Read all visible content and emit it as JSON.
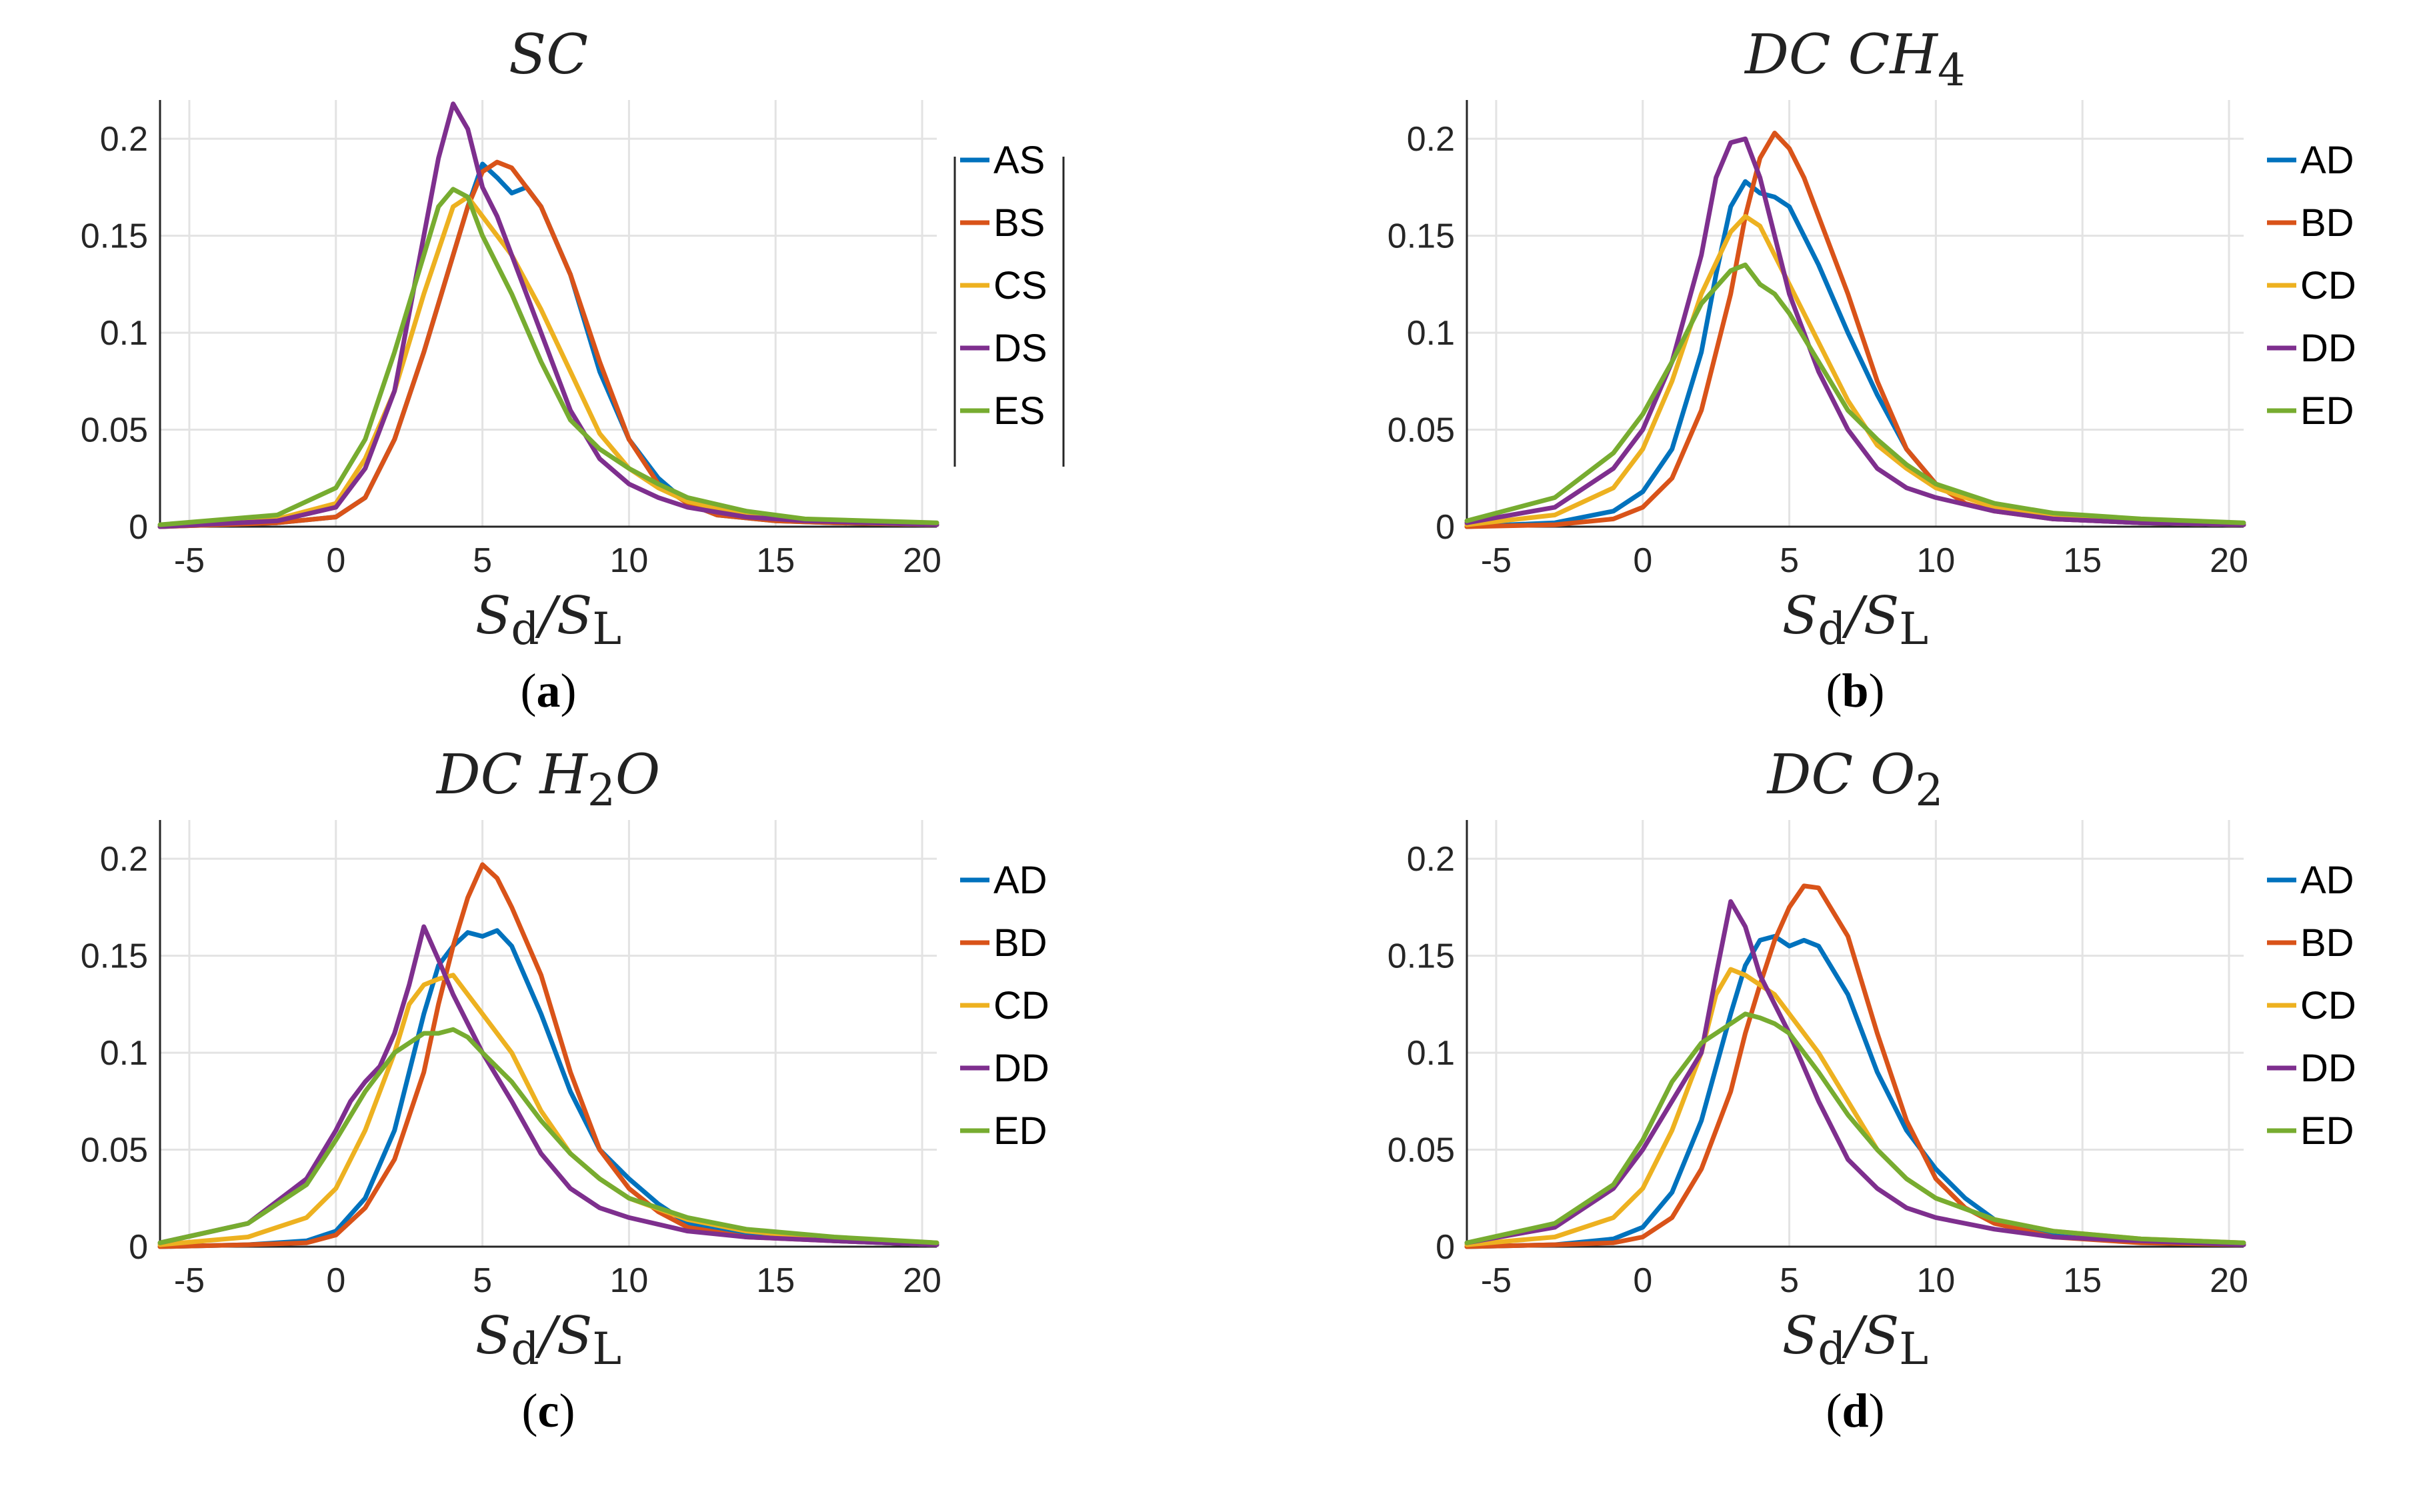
{
  "colors": {
    "A": "#0072BD",
    "B": "#D95319",
    "C": "#EDB120",
    "D": "#7E2F8E",
    "E": "#77AC30"
  },
  "chart_data": [
    {
      "type": "line",
      "title": "SC",
      "xlabel": "S_d/S_L",
      "caption": "a",
      "xlim": [
        -6,
        20.5
      ],
      "ylim": [
        0,
        0.22
      ],
      "xticks": [
        "-5",
        "0",
        "5",
        "10",
        "15",
        "20"
      ],
      "yticks": [
        "0",
        "0.05",
        "0.1",
        "0.15",
        "0.2"
      ],
      "series": [
        {
          "name": "AS",
          "color_key": "A",
          "x": [
            -6,
            -2,
            0,
            1,
            2,
            3,
            4,
            4.5,
            5,
            5.5,
            6,
            6.5,
            7,
            8,
            9,
            10,
            11,
            12,
            13,
            15,
            17,
            20.5
          ],
          "y": [
            0,
            0.002,
            0.005,
            0.015,
            0.045,
            0.09,
            0.14,
            0.165,
            0.187,
            0.18,
            0.172,
            0.175,
            0.165,
            0.13,
            0.08,
            0.045,
            0.025,
            0.012,
            0.006,
            0.003,
            0.002,
            0.001
          ]
        },
        {
          "name": "BS",
          "color_key": "B",
          "x": [
            -6,
            -2,
            0,
            1,
            2,
            3,
            4,
            4.5,
            5,
            5.5,
            6,
            6.5,
            7,
            8,
            9,
            10,
            11,
            12,
            13,
            15,
            17,
            20.5
          ],
          "y": [
            0,
            0.002,
            0.005,
            0.015,
            0.045,
            0.09,
            0.14,
            0.165,
            0.183,
            0.188,
            0.185,
            0.175,
            0.165,
            0.13,
            0.085,
            0.045,
            0.022,
            0.012,
            0.006,
            0.003,
            0.002,
            0.001
          ]
        },
        {
          "name": "CS",
          "color_key": "C",
          "x": [
            -6,
            -2,
            0,
            1,
            2,
            3,
            4,
            4.5,
            5,
            5.5,
            6,
            7,
            8,
            9,
            10,
            11,
            12,
            14,
            16,
            20.5
          ],
          "y": [
            0,
            0.004,
            0.012,
            0.035,
            0.07,
            0.12,
            0.165,
            0.17,
            0.16,
            0.15,
            0.14,
            0.112,
            0.08,
            0.048,
            0.03,
            0.02,
            0.013,
            0.006,
            0.003,
            0.001
          ]
        },
        {
          "name": "DS",
          "color_key": "D",
          "x": [
            -6,
            -2,
            0,
            1,
            2,
            3,
            3.5,
            4,
            4.5,
            5,
            5.5,
            6,
            7,
            8,
            9,
            10,
            11,
            12,
            14,
            16,
            20.5
          ],
          "y": [
            0,
            0.003,
            0.01,
            0.03,
            0.07,
            0.15,
            0.19,
            0.218,
            0.205,
            0.175,
            0.16,
            0.14,
            0.1,
            0.06,
            0.035,
            0.022,
            0.015,
            0.01,
            0.005,
            0.003,
            0.001
          ]
        },
        {
          "name": "ES",
          "color_key": "E",
          "x": [
            -6,
            -2,
            0,
            1,
            2,
            3,
            3.5,
            4,
            4.5,
            5,
            5.5,
            6,
            7,
            8,
            9,
            10,
            11,
            12,
            14,
            16,
            20.5
          ],
          "y": [
            0.001,
            0.006,
            0.02,
            0.045,
            0.09,
            0.14,
            0.165,
            0.174,
            0.17,
            0.15,
            0.135,
            0.12,
            0.085,
            0.055,
            0.04,
            0.03,
            0.022,
            0.015,
            0.008,
            0.004,
            0.002
          ]
        }
      ]
    },
    {
      "type": "line",
      "title": "DC CH4",
      "xlabel": "S_d/S_L",
      "caption": "b",
      "xlim": [
        -6,
        20.5
      ],
      "ylim": [
        0,
        0.22
      ],
      "xticks": [
        "-5",
        "0",
        "5",
        "10",
        "15",
        "20"
      ],
      "yticks": [
        "0",
        "0.05",
        "0.1",
        "0.15",
        "0.2"
      ],
      "series": [
        {
          "name": "AD",
          "color_key": "A",
          "x": [
            -6,
            -3,
            -1,
            0,
            1,
            2,
            2.5,
            3,
            3.5,
            4,
            4.5,
            5,
            6,
            7,
            8,
            9,
            10,
            12,
            14,
            17,
            20.5
          ],
          "y": [
            0,
            0.002,
            0.008,
            0.018,
            0.04,
            0.09,
            0.13,
            0.165,
            0.178,
            0.172,
            0.17,
            0.165,
            0.135,
            0.1,
            0.068,
            0.04,
            0.022,
            0.01,
            0.004,
            0.002,
            0.001
          ]
        },
        {
          "name": "BD",
          "color_key": "B",
          "x": [
            -6,
            -3,
            -1,
            0,
            1,
            2,
            3,
            3.5,
            4,
            4.5,
            5,
            5.5,
            6,
            7,
            8,
            9,
            10,
            11,
            12,
            14,
            17,
            20.5
          ],
          "y": [
            0,
            0.001,
            0.004,
            0.01,
            0.025,
            0.06,
            0.12,
            0.16,
            0.19,
            0.203,
            0.195,
            0.18,
            0.16,
            0.12,
            0.075,
            0.04,
            0.022,
            0.012,
            0.008,
            0.004,
            0.002,
            0.001
          ]
        },
        {
          "name": "CD",
          "color_key": "C",
          "x": [
            -6,
            -3,
            -1,
            0,
            1,
            2,
            3,
            3.5,
            4,
            4.5,
            5,
            6,
            7,
            8,
            9,
            10,
            12,
            14,
            17,
            20.5
          ],
          "y": [
            0.001,
            0.006,
            0.02,
            0.04,
            0.075,
            0.12,
            0.152,
            0.16,
            0.155,
            0.14,
            0.125,
            0.095,
            0.065,
            0.042,
            0.03,
            0.02,
            0.01,
            0.005,
            0.002,
            0.001
          ]
        },
        {
          "name": "DD",
          "color_key": "D",
          "x": [
            -6,
            -3,
            -1,
            0,
            1,
            2,
            2.5,
            3,
            3.5,
            4,
            4.5,
            5,
            6,
            7,
            8,
            9,
            10,
            12,
            14,
            17,
            20.5
          ],
          "y": [
            0.002,
            0.01,
            0.03,
            0.05,
            0.085,
            0.14,
            0.18,
            0.198,
            0.2,
            0.18,
            0.15,
            0.12,
            0.08,
            0.05,
            0.03,
            0.02,
            0.015,
            0.008,
            0.004,
            0.002,
            0.001
          ]
        },
        {
          "name": "ED",
          "color_key": "E",
          "x": [
            -6,
            -3,
            -1,
            0,
            1,
            2,
            3,
            3.5,
            4,
            4.5,
            5,
            6,
            7,
            8,
            9,
            10,
            12,
            14,
            17,
            20.5
          ],
          "y": [
            0.003,
            0.015,
            0.038,
            0.058,
            0.085,
            0.115,
            0.132,
            0.135,
            0.125,
            0.12,
            0.11,
            0.085,
            0.06,
            0.045,
            0.032,
            0.022,
            0.012,
            0.007,
            0.004,
            0.002
          ]
        }
      ]
    },
    {
      "type": "line",
      "title": "DC H2O",
      "xlabel": "S_d/S_L",
      "caption": "c",
      "xlim": [
        -6,
        20.5
      ],
      "ylim": [
        0,
        0.22
      ],
      "xticks": [
        "-5",
        "0",
        "5",
        "10",
        "15",
        "20"
      ],
      "yticks": [
        "0",
        "0.05",
        "0.1",
        "0.15",
        "0.2"
      ],
      "series": [
        {
          "name": "AD",
          "color_key": "A",
          "x": [
            -6,
            -3,
            -1,
            0,
            1,
            2,
            3,
            3.5,
            4,
            4.5,
            5,
            5.5,
            6,
            7,
            8,
            9,
            10,
            11,
            12,
            14,
            17,
            20.5
          ],
          "y": [
            0,
            0.001,
            0.003,
            0.008,
            0.025,
            0.06,
            0.12,
            0.145,
            0.155,
            0.162,
            0.16,
            0.163,
            0.155,
            0.12,
            0.08,
            0.05,
            0.035,
            0.022,
            0.012,
            0.006,
            0.003,
            0.001
          ]
        },
        {
          "name": "BD",
          "color_key": "B",
          "x": [
            -6,
            -3,
            -1,
            0,
            1,
            2,
            3,
            3.5,
            4,
            4.5,
            5,
            5.5,
            6,
            7,
            8,
            9,
            10,
            11,
            12,
            14,
            17,
            20.5
          ],
          "y": [
            0,
            0.001,
            0.002,
            0.006,
            0.02,
            0.045,
            0.09,
            0.125,
            0.155,
            0.18,
            0.197,
            0.19,
            0.175,
            0.14,
            0.09,
            0.05,
            0.03,
            0.018,
            0.01,
            0.005,
            0.003,
            0.001
          ]
        },
        {
          "name": "CD",
          "color_key": "C",
          "x": [
            -6,
            -3,
            -1,
            0,
            1,
            2,
            2.5,
            3,
            3.5,
            4,
            4.5,
            5,
            6,
            7,
            8,
            9,
            10,
            12,
            14,
            17,
            20.5
          ],
          "y": [
            0.001,
            0.005,
            0.015,
            0.03,
            0.06,
            0.1,
            0.125,
            0.135,
            0.138,
            0.14,
            0.13,
            0.12,
            0.1,
            0.07,
            0.048,
            0.035,
            0.025,
            0.014,
            0.008,
            0.004,
            0.002
          ]
        },
        {
          "name": "DD",
          "color_key": "D",
          "x": [
            -6,
            -3,
            -1,
            0,
            0.5,
            1,
            1.5,
            2,
            2.5,
            3,
            3.5,
            4,
            4.5,
            5,
            6,
            7,
            8,
            9,
            10,
            12,
            14,
            17,
            20.5
          ],
          "y": [
            0.002,
            0.012,
            0.035,
            0.06,
            0.075,
            0.085,
            0.093,
            0.11,
            0.135,
            0.165,
            0.148,
            0.13,
            0.115,
            0.1,
            0.075,
            0.048,
            0.03,
            0.02,
            0.015,
            0.008,
            0.005,
            0.003,
            0.001
          ]
        },
        {
          "name": "ED",
          "color_key": "E",
          "x": [
            -6,
            -3,
            -1,
            0,
            1,
            2,
            3,
            3.5,
            4,
            4.5,
            5,
            6,
            7,
            8,
            9,
            10,
            12,
            14,
            17,
            20.5
          ],
          "y": [
            0.002,
            0.012,
            0.032,
            0.055,
            0.08,
            0.1,
            0.11,
            0.11,
            0.112,
            0.108,
            0.1,
            0.085,
            0.065,
            0.048,
            0.035,
            0.025,
            0.015,
            0.009,
            0.005,
            0.002
          ]
        }
      ]
    },
    {
      "type": "line",
      "title": "DC O2",
      "xlabel": "S_d/S_L",
      "caption": "d",
      "xlim": [
        -6,
        20.5
      ],
      "ylim": [
        0,
        0.22
      ],
      "xticks": [
        "-5",
        "0",
        "5",
        "10",
        "15",
        "20"
      ],
      "yticks": [
        "0",
        "0.05",
        "0.1",
        "0.15",
        "0.2"
      ],
      "series": [
        {
          "name": "AD",
          "color_key": "A",
          "x": [
            -6,
            -3,
            -1,
            0,
            1,
            2,
            3,
            3.5,
            4,
            4.5,
            5,
            5.5,
            6,
            7,
            8,
            9,
            10,
            11,
            12,
            14,
            17,
            20.5
          ],
          "y": [
            0,
            0.001,
            0.004,
            0.01,
            0.028,
            0.065,
            0.12,
            0.145,
            0.158,
            0.16,
            0.155,
            0.158,
            0.155,
            0.13,
            0.09,
            0.06,
            0.04,
            0.025,
            0.014,
            0.006,
            0.003,
            0.001
          ]
        },
        {
          "name": "BD",
          "color_key": "B",
          "x": [
            -6,
            -3,
            -1,
            0,
            1,
            2,
            3,
            3.5,
            4,
            4.5,
            5,
            5.5,
            6,
            7,
            8,
            9,
            10,
            11,
            12,
            14,
            17,
            20.5
          ],
          "y": [
            0,
            0.001,
            0.002,
            0.005,
            0.015,
            0.04,
            0.08,
            0.11,
            0.135,
            0.158,
            0.175,
            0.186,
            0.185,
            0.16,
            0.11,
            0.065,
            0.035,
            0.02,
            0.012,
            0.005,
            0.002,
            0.001
          ]
        },
        {
          "name": "CD",
          "color_key": "C",
          "x": [
            -6,
            -3,
            -1,
            0,
            1,
            2,
            2.5,
            3,
            3.5,
            4,
            4.5,
            5,
            6,
            7,
            8,
            9,
            10,
            12,
            14,
            17,
            20.5
          ],
          "y": [
            0.001,
            0.005,
            0.015,
            0.03,
            0.06,
            0.1,
            0.13,
            0.143,
            0.14,
            0.135,
            0.13,
            0.12,
            0.1,
            0.075,
            0.05,
            0.035,
            0.025,
            0.014,
            0.008,
            0.004,
            0.002
          ]
        },
        {
          "name": "DD",
          "color_key": "D",
          "x": [
            -6,
            -3,
            -1,
            0,
            1,
            2,
            2.5,
            3,
            3.5,
            4,
            4.5,
            5,
            6,
            7,
            8,
            9,
            10,
            12,
            14,
            17,
            20.5
          ],
          "y": [
            0.002,
            0.01,
            0.03,
            0.05,
            0.075,
            0.1,
            0.14,
            0.178,
            0.165,
            0.14,
            0.125,
            0.11,
            0.075,
            0.045,
            0.03,
            0.02,
            0.015,
            0.009,
            0.005,
            0.003,
            0.001
          ]
        },
        {
          "name": "ED",
          "color_key": "E",
          "x": [
            -6,
            -3,
            -1,
            0,
            1,
            2,
            3,
            3.5,
            4,
            4.5,
            5,
            6,
            7,
            8,
            9,
            10,
            12,
            14,
            17,
            20.5
          ],
          "y": [
            0.002,
            0.012,
            0.032,
            0.055,
            0.085,
            0.105,
            0.115,
            0.12,
            0.118,
            0.115,
            0.11,
            0.09,
            0.068,
            0.05,
            0.035,
            0.025,
            0.014,
            0.008,
            0.004,
            0.002
          ]
        }
      ]
    }
  ]
}
